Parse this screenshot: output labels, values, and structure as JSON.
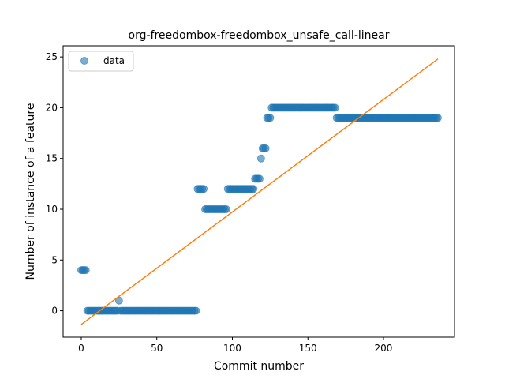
{
  "chart_data": {
    "type": "scatter",
    "title": "org-freedombox-freedombox_unsafe_call-linear",
    "xlabel": "Commit number",
    "ylabel": "Number of instance of a feature",
    "xlim": [
      -12,
      247
    ],
    "ylim": [
      -2.6,
      26.1
    ],
    "xticks": [
      0,
      50,
      100,
      150,
      200
    ],
    "yticks": [
      0,
      5,
      10,
      15,
      20,
      25
    ],
    "legend": {
      "placement": "top-left",
      "entries": [
        "data"
      ]
    },
    "colors": {
      "data": "#1f77b4",
      "fit": "#ff7f0e"
    },
    "series": [
      {
        "name": "data",
        "kind": "scatter",
        "segments": [
          {
            "x_start": 0,
            "x_end": 3,
            "y": 4
          },
          {
            "x_start": 4,
            "x_end": 24,
            "y": 0
          },
          {
            "x_start": 25,
            "x_end": 25,
            "y": 1
          },
          {
            "x_start": 26,
            "x_end": 76,
            "y": 0
          },
          {
            "x_start": 77,
            "x_end": 81,
            "y": 12
          },
          {
            "x_start": 82,
            "x_end": 96,
            "y": 10
          },
          {
            "x_start": 97,
            "x_end": 114,
            "y": 12
          },
          {
            "x_start": 115,
            "x_end": 118,
            "y": 13
          },
          {
            "x_start": 119,
            "x_end": 119,
            "y": 15
          },
          {
            "x_start": 120,
            "x_end": 122,
            "y": 16
          },
          {
            "x_start": 123,
            "x_end": 125,
            "y": 19
          },
          {
            "x_start": 126,
            "x_end": 168,
            "y": 20
          },
          {
            "x_start": 169,
            "x_end": 236,
            "y": 19
          }
        ]
      },
      {
        "name": "",
        "kind": "line",
        "x": [
          0,
          236
        ],
        "y": [
          -1.35,
          24.8
        ]
      }
    ]
  }
}
